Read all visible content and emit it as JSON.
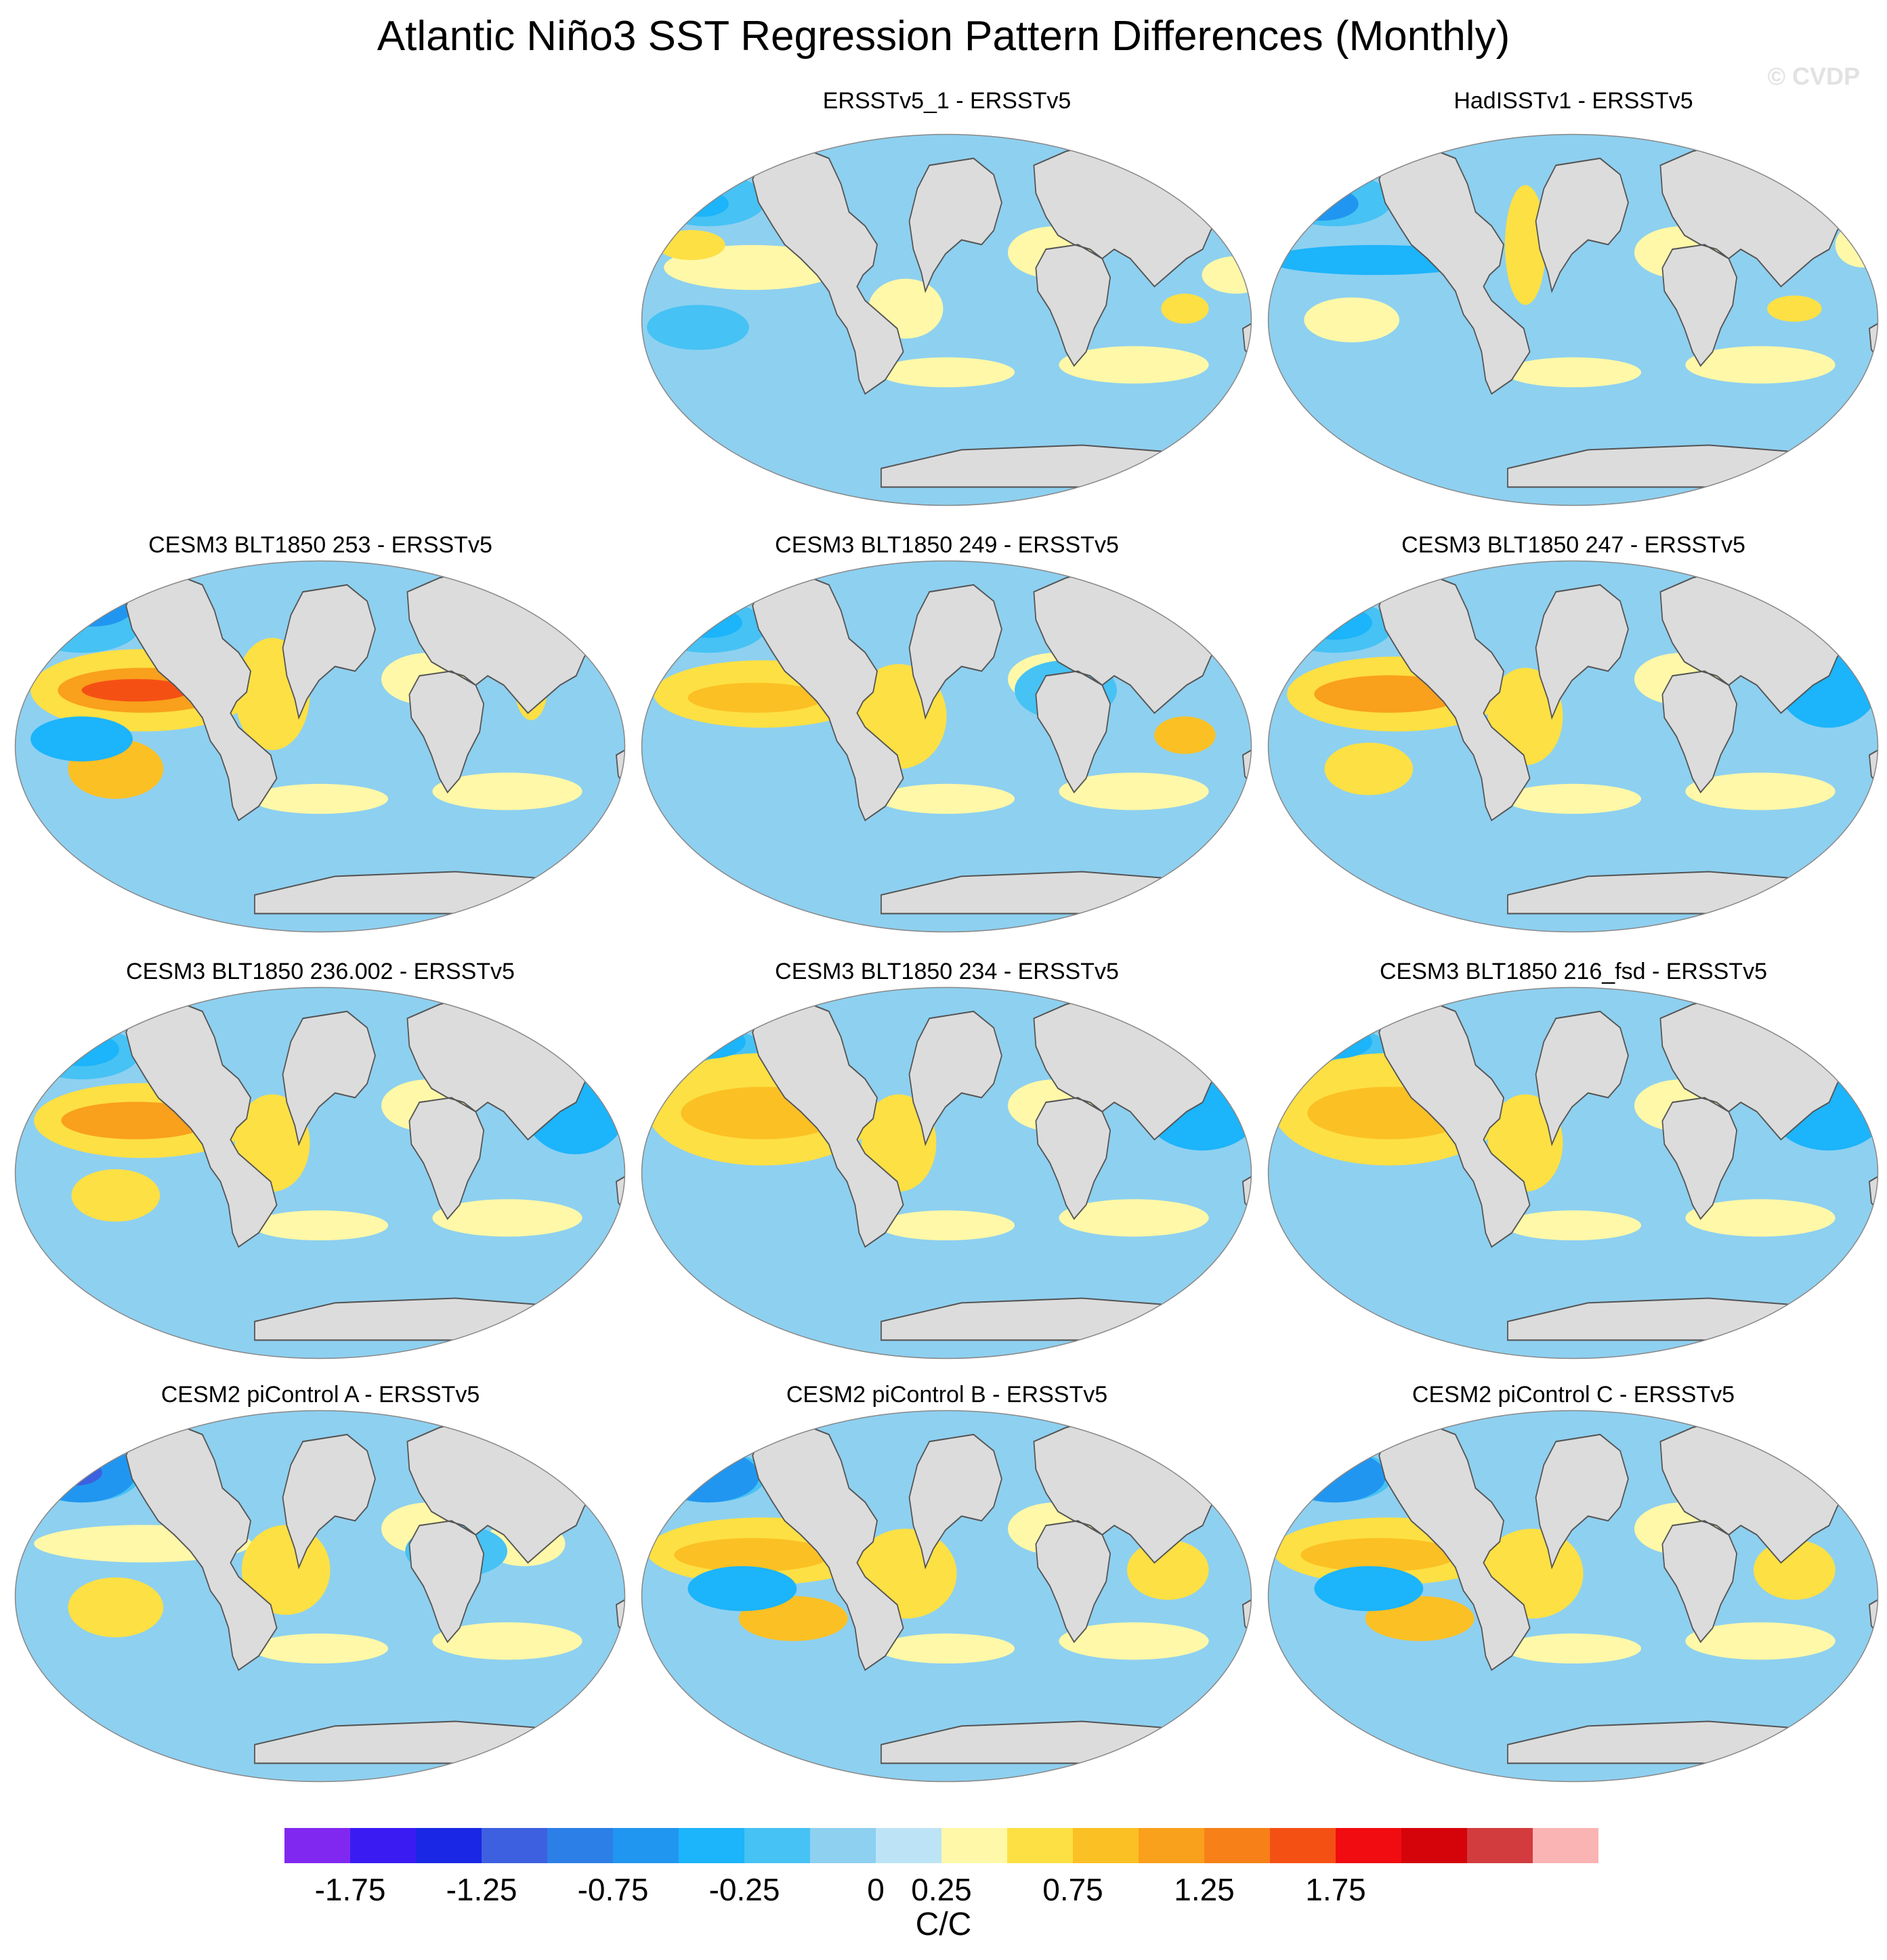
{
  "title": "Atlantic Niño3 SST Regression Pattern Differences (Monthly)",
  "watermark": "© CVDP",
  "panels": [
    {
      "title": "ERSSTv5_1 - ERSSTv5",
      "pattern": "weak-mixed"
    },
    {
      "title": "HadISSTv1 - ERSSTv5",
      "pattern": "weak-cool-pacific"
    },
    {
      "title": "CESM3 BLT1850 253 - ERSSTv5",
      "pattern": "strong-warm-eastern-pacific"
    },
    {
      "title": "CESM3 BLT1850 249 - ERSSTv5",
      "pattern": "warm-pacific-atlantic"
    },
    {
      "title": "CESM3 BLT1850 247 - ERSSTv5",
      "pattern": "warm-eastern-pacific"
    },
    {
      "title": "CESM3 BLT1850 236.002 - ERSSTv5",
      "pattern": "warm-eastern-pacific"
    },
    {
      "title": "CESM3 BLT1850 234 - ERSSTv5",
      "pattern": "warm-pacific-broad"
    },
    {
      "title": "CESM3 BLT1850 216_fsd - ERSSTv5",
      "pattern": "warm-pacific-broad"
    },
    {
      "title": "CESM2 piControl A - ERSSTv5",
      "pattern": "cool-north-pacific"
    },
    {
      "title": "CESM2 piControl B - ERSSTv5",
      "pattern": "warm-pacific-band"
    },
    {
      "title": "CESM2 piControl C - ERSSTv5",
      "pattern": "warm-pacific-band"
    }
  ],
  "colorbar": {
    "units": "C/C",
    "colors": [
      "#8128f0",
      "#3a1cf2",
      "#1a28e6",
      "#3c60e0",
      "#2d7fe8",
      "#2196f0",
      "#1cb4fa",
      "#46c2f4",
      "#8ed0f0",
      "#bde4f6",
      "#fff8a8",
      "#fde044",
      "#fbc024",
      "#f9a01c",
      "#f78018",
      "#f55014",
      "#f00c10",
      "#d4040a",
      "#d23c3e",
      "#fbb4b4"
    ],
    "tick_labels": [
      "-1.75",
      "-1.25",
      "-0.75",
      "-0.25",
      "0",
      "0.25",
      "0.75",
      "1.25",
      "1.75"
    ],
    "tick_boundaries": [
      1,
      3,
      5,
      7,
      9,
      10,
      12,
      14,
      16
    ]
  }
}
